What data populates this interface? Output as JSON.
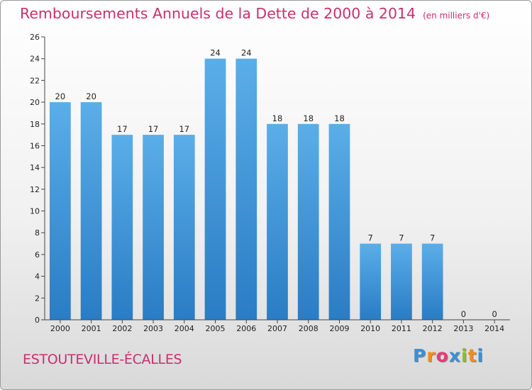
{
  "chart_data": {
    "type": "bar",
    "title": "Remboursements Annuels de la Dette de 2000 à 2014",
    "unit_note": "(en milliers d'€)",
    "categories": [
      "2000",
      "2001",
      "2002",
      "2003",
      "2004",
      "2005",
      "2006",
      "2007",
      "2008",
      "2009",
      "2010",
      "2011",
      "2012",
      "2013",
      "2014"
    ],
    "values": [
      20,
      20,
      17,
      17,
      17,
      24,
      24,
      18,
      18,
      18,
      7,
      7,
      7,
      0,
      0
    ],
    "ylim": [
      0,
      26
    ],
    "yticks": [
      0,
      2,
      4,
      6,
      8,
      10,
      12,
      14,
      16,
      18,
      20,
      22,
      24,
      26
    ],
    "grid": false,
    "bar_color_top": "#5aaee8",
    "bar_color_bottom": "#2a7cc4"
  },
  "commune": "ESTOUTEVILLE-ÉCALLES",
  "logo": {
    "letters": [
      "P",
      "r",
      "o",
      "x",
      "i",
      "t",
      "i"
    ],
    "colors": [
      "#3c8fd6",
      "#f08c1e",
      "#e63c78",
      "#3c8fd6",
      "#8cbe28",
      "#f08c1e",
      "#3c8fd6"
    ]
  }
}
